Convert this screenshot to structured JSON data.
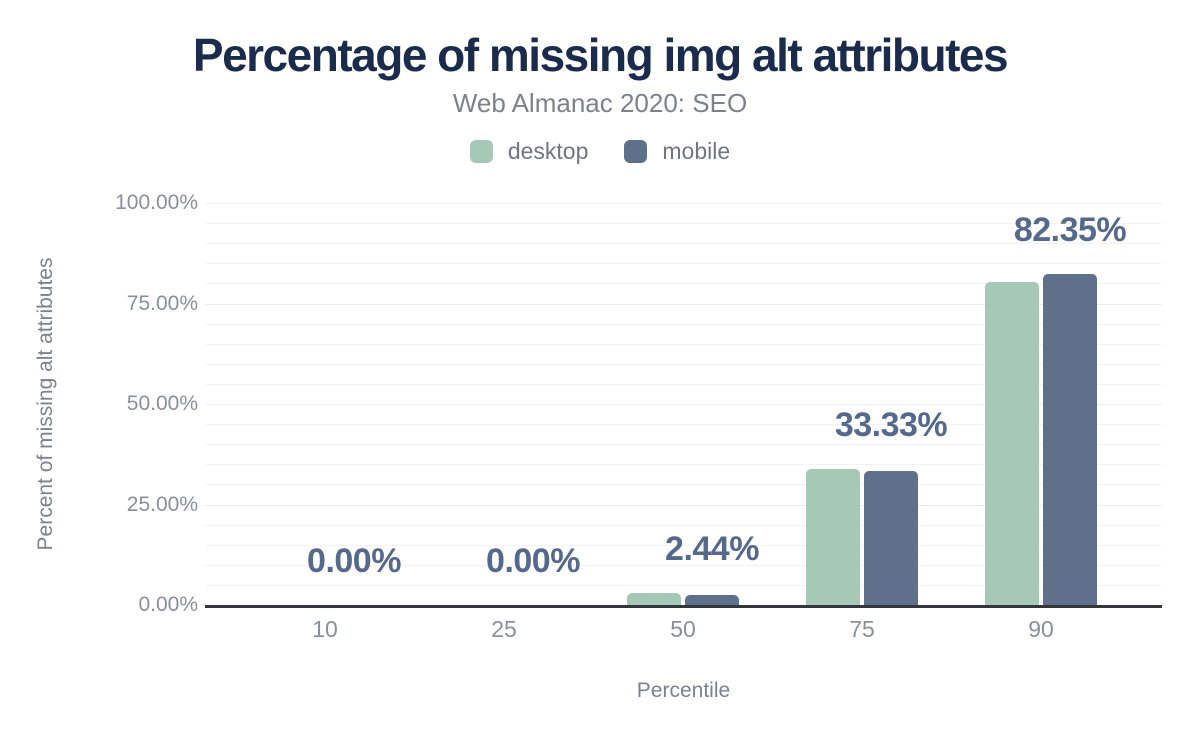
{
  "chart_data": {
    "type": "bar",
    "title": "Percentage of missing img alt attributes",
    "subtitle": "Web Almanac 2020: SEO",
    "xlabel": "Percentile",
    "ylabel": "Percent of missing alt attributes",
    "categories": [
      "10",
      "25",
      "50",
      "75",
      "90"
    ],
    "series": [
      {
        "name": "desktop",
        "color": "#a5c9b6",
        "values": [
          0,
          0,
          3.0,
          33.8,
          80.4
        ]
      },
      {
        "name": "mobile",
        "color": "#5f708b",
        "values": [
          0,
          0,
          2.44,
          33.33,
          82.35
        ]
      }
    ],
    "data_labels": {
      "labeled_series": "mobile",
      "values": [
        "0.00%",
        "0.00%",
        "2.44%",
        "33.33%",
        "82.35%"
      ]
    },
    "ylim": [
      0,
      100
    ],
    "y_ticks": [
      {
        "label": "0.00%",
        "value": 0
      },
      {
        "label": "25.00%",
        "value": 25
      },
      {
        "label": "50.00%",
        "value": 50
      },
      {
        "label": "75.00%",
        "value": 75
      },
      {
        "label": "100.00%",
        "value": 100
      }
    ],
    "grid": {
      "horizontal": true,
      "minor_step_pct": 5,
      "major_step_pct": 25
    },
    "legend_position": "top"
  },
  "legend": {
    "items": [
      {
        "label": "desktop",
        "color": "#a5c9b6"
      },
      {
        "label": "mobile",
        "color": "#5f708b"
      }
    ]
  },
  "colors": {
    "background": "#ffffff",
    "title": "#1a2b4c",
    "subtitle": "#7c828b",
    "legend_label": "#71767e",
    "data_label": "#55698c",
    "tick_label": "#8a9099",
    "axis_title": "#7c828b",
    "axis_line": "#33373c",
    "gridline_minor": "#f3f3f3",
    "gridline_major": "#ececec",
    "desktop_bar": "#a5c9b6",
    "mobile_bar": "#5f708b"
  }
}
